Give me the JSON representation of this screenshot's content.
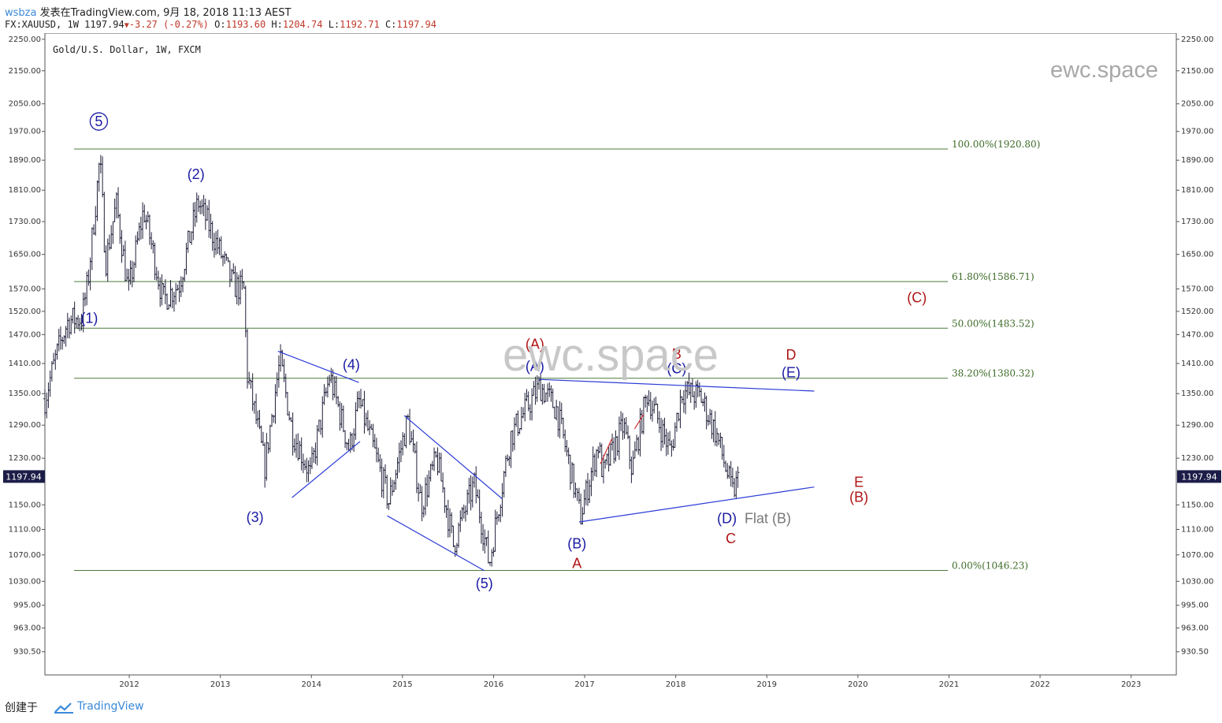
{
  "header": {
    "username": "wsbza",
    "published_text": "发表在TradingView.com, 9月 18, 2018 11:13 AEST",
    "symbol": "FX:XAUUSD, 1W",
    "last": "1197.94",
    "change_icon": "down-triangle-icon",
    "change": "-3.27 (-0.27%)",
    "open_label": "O:",
    "open": "1193.60",
    "high_label": "H:",
    "high": "1204.74",
    "low_label": "L:",
    "low": "1192.71",
    "close_label": "C:",
    "close": "1197.94"
  },
  "chart": {
    "instrument_label": "Gold/U.S. Dollar, 1W, FXCM",
    "watermark_small": "ewc.space",
    "watermark_large": "ewc.space",
    "last_price_label": "1197.94"
  },
  "footer": {
    "made_with": "创建于",
    "brand": "TradingView",
    "logo_icon": "tradingview-cloud-icon"
  },
  "chart_data": {
    "type": "ohlc",
    "y_axis_scale": "log",
    "y_ticks": [
      "2250.00",
      "2150.00",
      "2050.00",
      "1970.00",
      "1890.00",
      "1810.00",
      "1730.00",
      "1650.00",
      "1570.00",
      "1520.00",
      "1470.00",
      "1410.00",
      "1350.00",
      "1290.00",
      "1230.00",
      "1150.00",
      "1110.00",
      "1070.00",
      "1030.00",
      "995.00",
      "963.00",
      "930.50"
    ],
    "x_ticks": [
      "2012",
      "2013",
      "2014",
      "2015",
      "2016",
      "2017",
      "2018",
      "2019",
      "2020",
      "2021",
      "2022",
      "2023"
    ],
    "x_range": [
      "2011-01-28",
      "2023-07-01"
    ],
    "y_range": [
      900,
      2270
    ],
    "price_anchors": [
      [
        "2011-01-28",
        1340
      ],
      [
        "2011-03-20",
        1435
      ],
      [
        "2011-05-01",
        1500
      ],
      [
        "2011-06-25",
        1505
      ],
      [
        "2011-07-20",
        1590
      ],
      [
        "2011-08-20",
        1780
      ],
      [
        "2011-09-05",
        1895
      ],
      [
        "2011-09-28",
        1630
      ],
      [
        "2011-11-10",
        1775
      ],
      [
        "2011-12-28",
        1560
      ],
      [
        "2012-02-28",
        1760
      ],
      [
        "2012-05-15",
        1545
      ],
      [
        "2012-07-20",
        1580
      ],
      [
        "2012-10-04",
        1780
      ],
      [
        "2012-12-28",
        1660
      ],
      [
        "2013-02-20",
        1580
      ],
      [
        "2013-04-08",
        1565
      ],
      [
        "2013-04-16",
        1395
      ],
      [
        "2013-06-28",
        1215
      ],
      [
        "2013-08-28",
        1415
      ],
      [
        "2013-10-15",
        1280
      ],
      [
        "2013-12-28",
        1200
      ],
      [
        "2014-03-15",
        1385
      ],
      [
        "2014-06-02",
        1245
      ],
      [
        "2014-07-10",
        1335
      ],
      [
        "2014-11-07",
        1155
      ],
      [
        "2015-01-22",
        1300
      ],
      [
        "2015-03-17",
        1150
      ],
      [
        "2015-05-18",
        1230
      ],
      [
        "2015-07-24",
        1085
      ],
      [
        "2015-10-15",
        1185
      ],
      [
        "2015-12-15",
        1055
      ],
      [
        "2016-03-10",
        1270
      ],
      [
        "2016-07-05",
        1365
      ],
      [
        "2016-09-10",
        1320
      ],
      [
        "2016-12-15",
        1130
      ],
      [
        "2017-02-25",
        1255
      ],
      [
        "2017-03-15",
        1200
      ],
      [
        "2017-06-06",
        1290
      ],
      [
        "2017-07-10",
        1210
      ],
      [
        "2017-09-08",
        1350
      ],
      [
        "2017-12-12",
        1240
      ],
      [
        "2018-01-25",
        1355
      ],
      [
        "2018-04-10",
        1345
      ],
      [
        "2018-06-15",
        1270
      ],
      [
        "2018-08-16",
        1170
      ],
      [
        "2018-09-14",
        1198
      ]
    ],
    "fibonacci": [
      {
        "label": "100.00%(1920.80)",
        "price": 1920.8
      },
      {
        "label": "61.80%(1586.71)",
        "price": 1586.71
      },
      {
        "label": "50.00%(1483.52)",
        "price": 1483.52
      },
      {
        "label": "38.20%(1380.32)",
        "price": 1380.32
      },
      {
        "label": "0.00%(1046.23)",
        "price": 1046.23
      }
    ],
    "trendlines": [
      {
        "from": [
          "2013-08-20",
          1435
        ],
        "to": [
          "2014-07-10",
          1372
        ]
      },
      {
        "from": [
          "2013-10-15",
          1162
        ],
        "to": [
          "2014-07-15",
          1260
        ]
      },
      {
        "from": [
          "2014-11-01",
          1132
        ],
        "to": [
          "2015-11-25",
          1046
        ]
      },
      {
        "from": [
          "2015-01-08",
          1308
        ],
        "to": [
          "2016-02-05",
          1160
        ]
      },
      {
        "from": [
          "2016-07-01",
          1378
        ],
        "to": [
          "2019-07-10",
          1355
        ]
      },
      {
        "from": [
          "2016-12-10",
          1122
        ],
        "to": [
          "2019-07-10",
          1180
        ]
      }
    ],
    "short_red_segments": [
      {
        "from": [
          "2017-03-05",
          1220
        ],
        "to": [
          "2017-04-20",
          1265
        ]
      },
      {
        "from": [
          "2017-07-20",
          1283
        ],
        "to": [
          "2017-08-25",
          1310
        ]
      }
    ],
    "wave_labels": [
      {
        "text": "5",
        "date": "2011-09-01",
        "price": 1985,
        "color": "#1a1aa3",
        "circled": true
      },
      {
        "text": "(1)",
        "date": "2011-07-25",
        "price": 1495,
        "color": "#1a1aa3"
      },
      {
        "text": "(2)",
        "date": "2012-09-25",
        "price": 1840,
        "color": "#1a1aa3"
      },
      {
        "text": "(3)",
        "date": "2013-05-20",
        "price": 1122,
        "color": "#1a1aa3"
      },
      {
        "text": "(4)",
        "date": "2014-06-10",
        "price": 1398,
        "color": "#1a1aa3"
      },
      {
        "text": "(5)",
        "date": "2015-11-25",
        "price": 1020,
        "color": "#1a1aa3"
      },
      {
        "text": "(A)",
        "date": "2016-06-15",
        "price": 1440,
        "color": "#b01414"
      },
      {
        "text": "(A)",
        "date": "2016-06-15",
        "price": 1395,
        "color": "#1a1aa3"
      },
      {
        "text": "(B)",
        "date": "2016-12-01",
        "price": 1080,
        "color": "#1a1aa3"
      },
      {
        "text": "A",
        "date": "2016-12-01",
        "price": 1050,
        "color": "#b01414"
      },
      {
        "text": "B",
        "date": "2018-01-05",
        "price": 1420,
        "color": "#b01414"
      },
      {
        "text": "(C)",
        "date": "2018-01-05",
        "price": 1390,
        "color": "#1a1aa3"
      },
      {
        "text": "(D)",
        "date": "2018-07-25",
        "price": 1120,
        "color": "#1a1aa3"
      },
      {
        "text": "C",
        "date": "2018-08-10",
        "price": 1088,
        "color": "#b01414"
      },
      {
        "text": "Flat (B)",
        "date": "2019-01-05",
        "price": 1120,
        "color": "#777777"
      },
      {
        "text": "D",
        "date": "2019-04-08",
        "price": 1418,
        "color": "#b01414"
      },
      {
        "text": "(E)",
        "date": "2019-04-08",
        "price": 1382,
        "color": "#1a1aa3"
      },
      {
        "text": "E",
        "date": "2020-01-05",
        "price": 1180,
        "color": "#b01414"
      },
      {
        "text": "(B)",
        "date": "2020-01-05",
        "price": 1155,
        "color": "#b01414"
      },
      {
        "text": "(C)",
        "date": "2020-08-25",
        "price": 1540,
        "color": "#b01414"
      }
    ]
  }
}
